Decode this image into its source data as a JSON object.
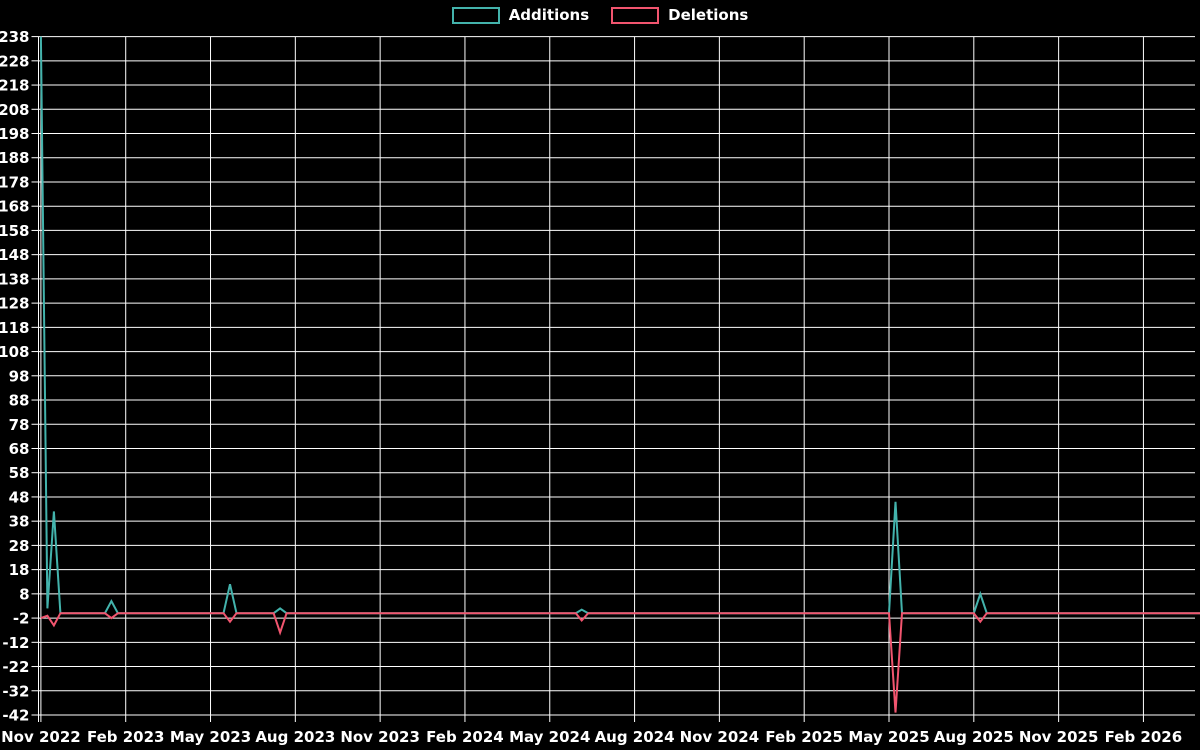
{
  "chart_data": {
    "type": "line",
    "title": "",
    "background_color": "#000000",
    "grid": true,
    "grid_color": "#ffffff",
    "text_color": "#ffffff",
    "legend": {
      "position": "top-center",
      "entries": [
        {
          "label": "Additions",
          "color": "#43b3ac"
        },
        {
          "label": "Deletions",
          "color": "#f2556f"
        }
      ]
    },
    "x_axis": {
      "start": "2022-11-01",
      "tick_interval_months": 3,
      "tick_labels": [
        "Nov 2022",
        "Feb 2023",
        "May 2023",
        "Aug 2023",
        "Nov 2023",
        "Feb 2024",
        "May 2024",
        "Aug 2024",
        "Nov 2024",
        "Feb 2025",
        "May 2025",
        "Aug 2025",
        "Nov 2025",
        "Feb 2026"
      ]
    },
    "y_axis": {
      "min": -42,
      "max": 238,
      "tick_step": 10,
      "tick_labels": [
        238,
        228,
        218,
        208,
        198,
        188,
        178,
        168,
        158,
        148,
        138,
        128,
        118,
        108,
        98,
        88,
        78,
        68,
        58,
        48,
        38,
        28,
        18,
        8,
        -2,
        -12,
        -22,
        -32,
        -42
      ]
    },
    "series": [
      {
        "name": "Additions",
        "color": "#43b3ac",
        "points": [
          [
            "2022-11-01",
            238
          ],
          [
            "2022-11-08",
            2
          ],
          [
            "2022-11-15",
            42
          ],
          [
            "2022-11-22",
            0
          ],
          [
            "2023-01-09",
            0
          ],
          [
            "2023-01-16",
            5
          ],
          [
            "2023-01-23",
            0
          ],
          [
            "2023-05-15",
            0
          ],
          [
            "2023-05-22",
            12
          ],
          [
            "2023-05-29",
            0
          ],
          [
            "2023-07-08",
            0
          ],
          [
            "2023-07-15",
            2
          ],
          [
            "2023-07-22",
            0
          ],
          [
            "2024-05-29",
            0
          ],
          [
            "2024-06-05",
            1.5
          ],
          [
            "2024-06-12",
            0
          ],
          [
            "2025-05-01",
            0
          ],
          [
            "2025-05-08",
            46
          ],
          [
            "2025-05-15",
            0
          ],
          [
            "2025-08-01",
            0
          ],
          [
            "2025-08-08",
            8
          ],
          [
            "2025-08-15",
            0
          ],
          [
            "2026-04-01",
            0
          ]
        ]
      },
      {
        "name": "Deletions",
        "color": "#f2556f",
        "points": [
          [
            "2022-11-01",
            -2
          ],
          [
            "2022-11-08",
            -1
          ],
          [
            "2022-11-15",
            -5
          ],
          [
            "2022-11-22",
            0
          ],
          [
            "2023-01-09",
            0
          ],
          [
            "2023-01-16",
            -2
          ],
          [
            "2023-01-23",
            0
          ],
          [
            "2023-05-15",
            0
          ],
          [
            "2023-05-22",
            -3.5
          ],
          [
            "2023-05-29",
            0
          ],
          [
            "2023-07-08",
            0
          ],
          [
            "2023-07-15",
            -8
          ],
          [
            "2023-07-22",
            0
          ],
          [
            "2024-05-29",
            0
          ],
          [
            "2024-06-05",
            -3
          ],
          [
            "2024-06-12",
            0
          ],
          [
            "2025-05-01",
            0
          ],
          [
            "2025-05-08",
            -41
          ],
          [
            "2025-05-15",
            0
          ],
          [
            "2025-08-01",
            0
          ],
          [
            "2025-08-08",
            -3.5
          ],
          [
            "2025-08-15",
            0
          ],
          [
            "2026-04-01",
            0
          ]
        ]
      }
    ]
  }
}
